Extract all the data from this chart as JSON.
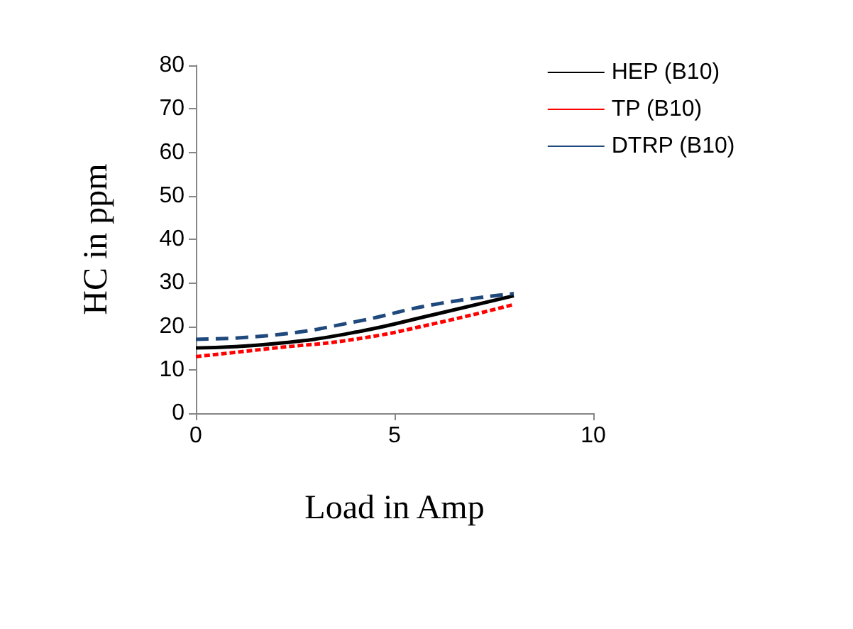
{
  "chart_data": {
    "type": "line",
    "xlabel": "Load in Amp",
    "ylabel": "HC in ppm",
    "x": [
      0,
      2,
      4,
      6,
      8
    ],
    "series": [
      {
        "name": "HEP (B10)",
        "color": "#000000",
        "line_style": "solid",
        "values": [
          15,
          16,
          18.6,
          22.7,
          27
        ]
      },
      {
        "name": "TP (B10)",
        "color": "#ff0000",
        "line_style": "dotted",
        "values": [
          13,
          15,
          17,
          20.6,
          25
        ]
      },
      {
        "name": "DTRP (B10)",
        "color": "#1f497d",
        "line_style": "dashed",
        "values": [
          17,
          18,
          21,
          25,
          27.5
        ]
      }
    ],
    "xlim": [
      0,
      10
    ],
    "xticks": [
      0,
      5,
      10
    ],
    "ylim": [
      0,
      80
    ],
    "yticks": [
      0,
      10,
      20,
      30,
      40,
      50,
      60,
      70,
      80
    ],
    "grid": false,
    "legend": "top right",
    "marker": "none"
  }
}
